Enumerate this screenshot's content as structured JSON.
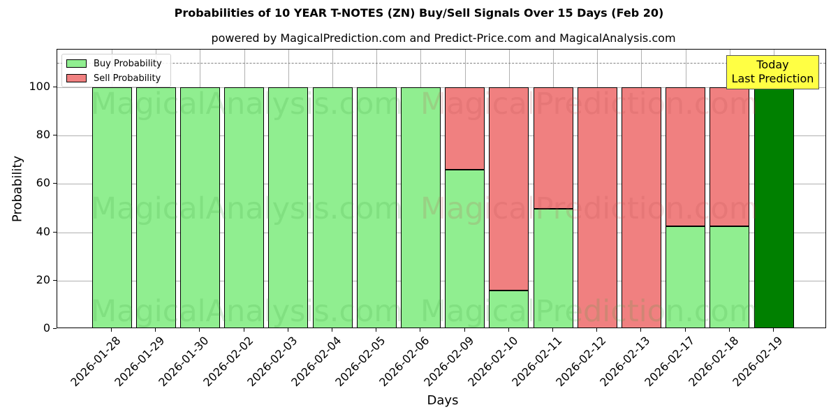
{
  "title": "Probabilities of 10 YEAR T-NOTES (ZN) Buy/Sell Signals Over 15 Days (Feb 20)",
  "subtitle": "powered by MagicalPrediction.com and Predict-Price.com and MagicalAnalysis.com",
  "legend": {
    "buy_label": "Buy Probability",
    "sell_label": "Sell Probability"
  },
  "annotation": {
    "line1": "Today",
    "line2": "Last Prediction"
  },
  "watermarks": [
    "MagicalAnalysis.com",
    "MagicalPrediction.com"
  ],
  "colors": {
    "buy": "#90ee90",
    "sell": "#f08080",
    "today": "#008000",
    "annotation_bg": "#ffff44",
    "dashed_line": "#808080"
  },
  "chart_data": {
    "type": "bar",
    "stacked": true,
    "title": "Probabilities of 10 YEAR T-NOTES (ZN) Buy/Sell Signals Over 15 Days (Feb 20)",
    "subtitle": "powered by MagicalPrediction.com and Predict-Price.com and MagicalAnalysis.com",
    "xlabel": "Days",
    "ylabel": "Probability",
    "ylim": [
      0,
      115.6
    ],
    "yticks": [
      0,
      20,
      40,
      60,
      80,
      100
    ],
    "grid": true,
    "legend_position": "upper left",
    "reference_line": {
      "y": 110,
      "style": "dashed",
      "color": "#808080"
    },
    "categories": [
      "2026-01-28",
      "2026-01-29",
      "2026-01-30",
      "2026-02-02",
      "2026-02-03",
      "2026-02-04",
      "2026-02-05",
      "2026-02-06",
      "2026-02-09",
      "2026-02-10",
      "2026-02-11",
      "2026-02-12",
      "2026-02-13",
      "2026-02-17",
      "2026-02-18",
      "2026-02-19"
    ],
    "series": [
      {
        "name": "Buy Probability",
        "values": [
          100,
          100,
          100,
          100,
          100,
          100,
          100,
          100,
          66,
          16,
          49.7,
          0,
          0,
          42.5,
          42.5,
          100
        ]
      },
      {
        "name": "Sell Probability",
        "values": [
          0,
          0,
          0,
          0,
          0,
          0,
          0,
          0,
          34,
          84,
          50.3,
          100,
          100,
          57.5,
          57.5,
          0
        ]
      }
    ],
    "highlight": {
      "category": "2026-02-19",
      "label": "Today\nLast Prediction",
      "color": "#008000"
    }
  }
}
